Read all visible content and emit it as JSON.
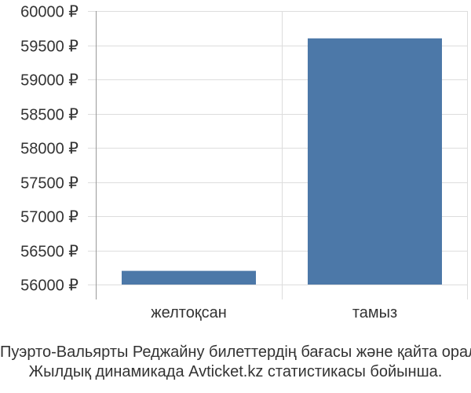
{
  "chart_data": {
    "type": "bar",
    "categories": [
      "желтоқсан",
      "тамыз"
    ],
    "values": [
      56200,
      59600
    ],
    "ylim": [
      56000,
      60000
    ],
    "yticks": [
      56000,
      56500,
      57000,
      57500,
      58000,
      58500,
      59000,
      59500,
      60000
    ],
    "ytick_labels": [
      "56000 ₽",
      "56500 ₽",
      "57000 ₽",
      "57500 ₽",
      "58000 ₽",
      "58500 ₽",
      "59000 ₽",
      "59500 ₽",
      "60000 ₽"
    ],
    "grid": true,
    "bar_color": "#4c78a8"
  },
  "caption": {
    "line1": "Пуэрто-Вальярты Реджайну билеттердің бағасы және қайта оралу",
    "line2": "Жылдық динамикада Avticket.kz статистикасы бойынша."
  }
}
